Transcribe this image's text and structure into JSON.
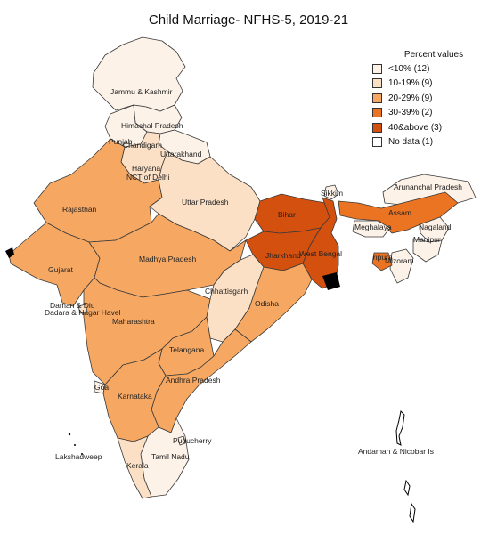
{
  "title": "Child Marriage- NFHS-5, 2019-21",
  "legend": {
    "title": "Percent values",
    "items": [
      {
        "label": "<10% (12)",
        "color": "#fdf2e8"
      },
      {
        "label": "10-19% (9)",
        "color": "#fbe0c6"
      },
      {
        "label": "20-29% (9)",
        "color": "#f6a862"
      },
      {
        "label": "30-39% (2)",
        "color": "#ea7422"
      },
      {
        "label": "40&above (3)",
        "color": "#d4500f"
      },
      {
        "label": "No data (1)",
        "color": "#ffffff"
      }
    ]
  },
  "labels": {
    "jk": "Jammu & Kashmir",
    "hp": "Himachal Pradesh",
    "pb": "Punjab",
    "ch": "Chandigarh",
    "uk": "Uttarakhand",
    "hr": "Haryana",
    "dl": "NCT of Delhi",
    "rj": "Rajasthan",
    "up": "Uttar Pradesh",
    "sk": "Sikkim",
    "ar": "Arunanchal Pradesh",
    "br": "Bihar",
    "as": "Assam",
    "ng": "Nagaland",
    "ml": "Meghalaya",
    "mn": "Manipur",
    "gj": "Gujarat",
    "mp": "Madhya Pradesh",
    "jh": "Jharkhand",
    "wb": "West Bengal",
    "tr": "Tripura",
    "mz": "Mizoram",
    "dd": "Daman & Diu",
    "dnh": "Dadara & Nagar Havel",
    "cg": "Chhattisgarh",
    "od": "Odisha",
    "mh": "Maharashtra",
    "tg": "Telangana",
    "ga": "Goa",
    "ap": "Andhra Pradesh",
    "ka": "Karnataka",
    "py": "Puducherry",
    "ld": "Lakshadweep",
    "an": "Andaman & Nicobar Is",
    "tn": "Tamil Nadu",
    "kl": "Kerala"
  }
}
